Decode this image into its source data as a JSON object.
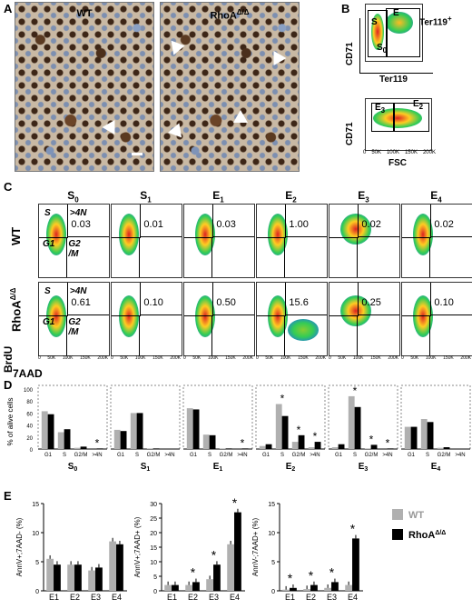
{
  "panelA": {
    "letter": "A",
    "wt": "WT",
    "rhoa": "RhoA",
    "sup": "Δ/Δ"
  },
  "panelB": {
    "letter": "B",
    "cd71": "CD71",
    "ter119": "Ter119",
    "fsc": "FSC",
    "ter119plus": "Ter119",
    "plus": "+",
    "s": "S",
    "e": "E",
    "s0": "0",
    "e3": "3",
    "e2": "2",
    "ticks": [
      "0",
      "50K",
      "100K",
      "150K",
      "200K"
    ]
  },
  "panelC": {
    "letter": "C",
    "columns": [
      "S0",
      "S1",
      "E1",
      "E2",
      "E3",
      "E4"
    ],
    "col_base": [
      "S",
      "S",
      "E",
      "E",
      "E",
      "E"
    ],
    "col_sub": [
      "0",
      "1",
      "1",
      "2",
      "3",
      "4"
    ],
    "row_wt": "WT",
    "row_rhoa": "RhoA",
    "row_sup": "Δ/Δ",
    "brdu": "BrdU",
    "aad": "7AAD",
    "gate_S": "S",
    "gate_G1": "G1",
    "gate_G2M1": "G2",
    "gate_G2M2": "/M",
    "gate_4N": ">4N",
    "wt_values": [
      "0.03",
      "0.01",
      "0.03",
      "1.00",
      "0.02",
      "0.02"
    ],
    "ko_values": [
      "0.61",
      "0.10",
      "0.50",
      "15.6",
      "0.25",
      "0.10"
    ],
    "xticks": [
      "0",
      "50K",
      "100K",
      "150K",
      "200K"
    ]
  },
  "panelD": {
    "letter": "D",
    "ylabel": "% of alive cells",
    "yticks": [
      "0",
      "20",
      "40",
      "60",
      "80",
      "100"
    ],
    "cats": [
      "G1",
      "S",
      "G2/M",
      ">4N"
    ],
    "groups": [
      "S0",
      "S1",
      "E1",
      "E2",
      "E3",
      "E4"
    ],
    "group_base": [
      "S",
      "S",
      "E",
      "E",
      "E",
      "E"
    ],
    "group_sub": [
      "0",
      "1",
      "1",
      "2",
      "3",
      "4"
    ],
    "star": "*"
  },
  "panelE": {
    "letter": "E",
    "ylabels": [
      "AnnV+;7AAD- (%)",
      "AnnV+;7AAD+ (%)",
      "AnnV-;7AAD+ (%)"
    ],
    "cats": [
      "E1",
      "E2",
      "E3",
      "E4"
    ],
    "legend_wt": "WT",
    "legend_rhoa": "RhoA",
    "legend_sup": "Δ/Δ",
    "star": "*",
    "colors": {
      "wt": "#b0b0b0",
      "ko": "#000000"
    }
  },
  "chart_data": [
    {
      "type": "bar",
      "title": "D",
      "ylabel": "% of alive cells",
      "ylim": [
        0,
        100
      ],
      "facets": [
        "S0",
        "S1",
        "E1",
        "E2",
        "E3",
        "E4"
      ],
      "categories": [
        "G1",
        "S",
        "G2/M",
        ">4N"
      ],
      "series": [
        {
          "name": "WT",
          "values": [
            [
              63,
              28,
              2,
              0
            ],
            [
              32,
              60,
              1,
              0
            ],
            [
              68,
              24,
              1,
              0
            ],
            [
              5,
              75,
              12,
              3
            ],
            [
              3,
              88,
              1,
              0
            ],
            [
              37,
              50,
              2,
              0
            ]
          ]
        },
        {
          "name": "RhoAΔ/Δ",
          "values": [
            [
              58,
              33,
              4,
              1
            ],
            [
              30,
              60,
              1,
              0
            ],
            [
              66,
              23,
              1,
              1
            ],
            [
              8,
              55,
              23,
              12
            ],
            [
              8,
              70,
              7,
              1
            ],
            [
              37,
              45,
              3,
              0
            ]
          ]
        }
      ]
    },
    {
      "type": "bar",
      "ylabel": "AnnV+;7AAD- (%)",
      "ylim": [
        0,
        15
      ],
      "categories": [
        "E1",
        "E2",
        "E3",
        "E4"
      ],
      "series": [
        {
          "name": "WT",
          "values": [
            5.5,
            4.5,
            3.5,
            8.5
          ]
        },
        {
          "name": "RhoAΔ/Δ",
          "values": [
            4.5,
            4.5,
            4,
            8
          ]
        }
      ]
    },
    {
      "type": "bar",
      "ylabel": "AnnV+;7AAD+ (%)",
      "ylim": [
        0,
        30
      ],
      "categories": [
        "E1",
        "E2",
        "E3",
        "E4"
      ],
      "series": [
        {
          "name": "WT",
          "values": [
            2,
            2,
            4,
            16
          ]
        },
        {
          "name": "RhoAΔ/Δ",
          "values": [
            2,
            3,
            9,
            27
          ]
        }
      ]
    },
    {
      "type": "bar",
      "ylabel": "AnnV-;7AAD+ (%)",
      "ylim": [
        0,
        15
      ],
      "categories": [
        "E1",
        "E2",
        "E3",
        "E4"
      ],
      "series": [
        {
          "name": "WT",
          "values": [
            0.2,
            0.3,
            0.5,
            1
          ]
        },
        {
          "name": "RhoAΔ/Δ",
          "values": [
            0.5,
            1,
            1.5,
            9
          ]
        }
      ]
    }
  ]
}
